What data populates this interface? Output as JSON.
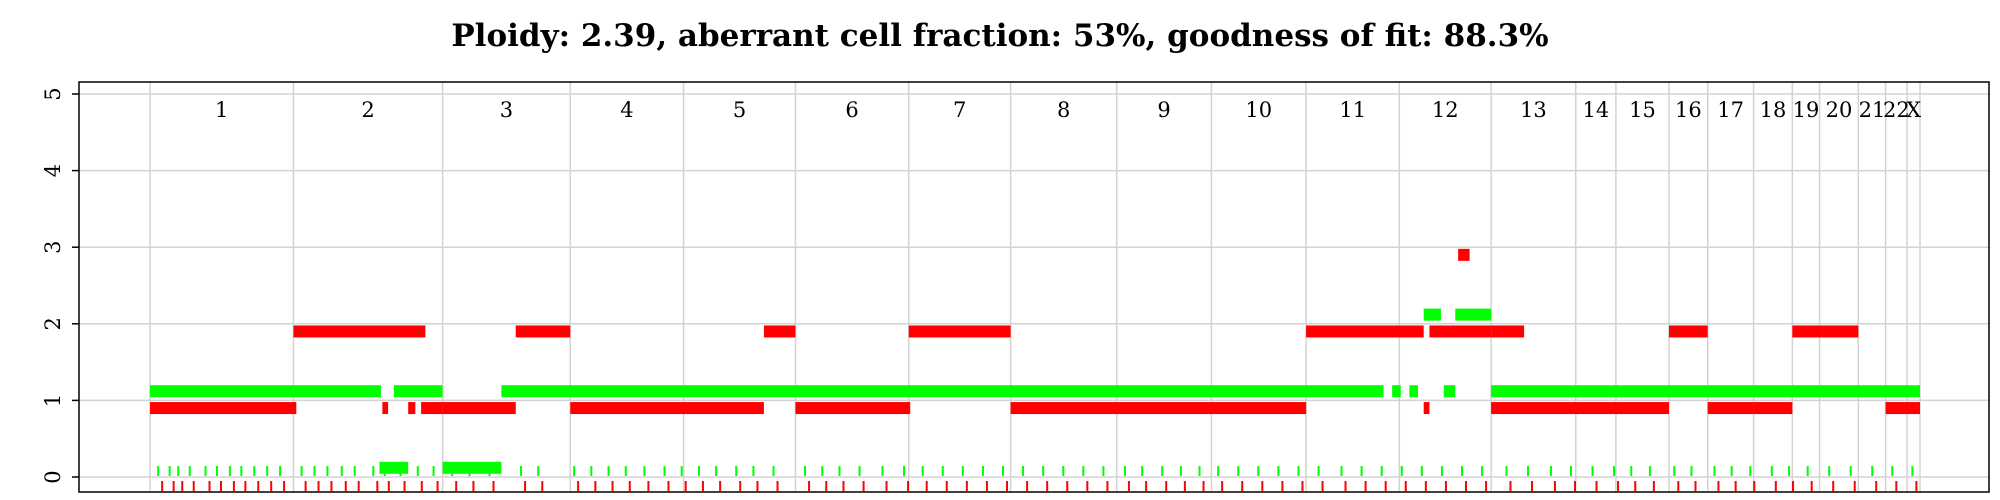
{
  "chart_data": {
    "type": "scatter",
    "title": "Ploidy: 2.39, aberrant cell fraction: 53%, goodness of fit: 88.3%",
    "xlabel": "",
    "ylabel": "",
    "ylim": [
      0,
      5
    ],
    "y_ticks": [
      "0",
      "1",
      "2",
      "3",
      "4",
      "5"
    ],
    "grid": true,
    "colors": {
      "major": "#00ff00",
      "minor": "#ff0000",
      "grid": "#d3d3d3",
      "frame": "#000000"
    },
    "chromosome_scale": [
      0,
      11.5
    ],
    "chromosomes": [
      {
        "label": "1",
        "start": 0.0,
        "end": 1.0
      },
      {
        "label": "2",
        "start": 1.0,
        "end": 2.04
      },
      {
        "label": "3",
        "start": 2.04,
        "end": 2.93
      },
      {
        "label": "4",
        "start": 2.93,
        "end": 3.72
      },
      {
        "label": "5",
        "start": 3.72,
        "end": 4.5
      },
      {
        "label": "6",
        "start": 4.5,
        "end": 5.29
      },
      {
        "label": "7",
        "start": 5.29,
        "end": 6.0
      },
      {
        "label": "8",
        "start": 6.0,
        "end": 6.74
      },
      {
        "label": "9",
        "start": 6.74,
        "end": 7.4
      },
      {
        "label": "10",
        "start": 7.4,
        "end": 8.06
      },
      {
        "label": "11",
        "start": 8.06,
        "end": 8.71
      },
      {
        "label": "12",
        "start": 8.71,
        "end": 9.35
      },
      {
        "label": "13",
        "start": 9.35,
        "end": 9.94
      },
      {
        "label": "14",
        "start": 9.94,
        "end": 10.22
      },
      {
        "label": "15",
        "start": 10.22,
        "end": 10.59
      },
      {
        "label": "16",
        "start": 10.59,
        "end": 10.86
      },
      {
        "label": "17",
        "start": 10.86,
        "end": 11.18
      },
      {
        "label": "18",
        "start": 11.18,
        "end": 11.45
      },
      {
        "label": "19",
        "start": 11.45,
        "end": 11.64
      },
      {
        "label": "20",
        "start": 11.64,
        "end": 11.91
      },
      {
        "label": "21",
        "start": 11.91,
        "end": 12.1
      },
      {
        "label": "22",
        "start": 12.1,
        "end": 12.25
      },
      {
        "label": "X",
        "start": 12.25,
        "end": 12.34
      }
    ],
    "series": [
      {
        "name": "",
        "color": "#00ff00",
        "y_offset": 0.12,
        "segments": [
          [
            0.0,
            1.0,
            1
          ],
          [
            1.0,
            1.61,
            1
          ],
          [
            1.7,
            2.04,
            1
          ],
          [
            2.04,
            2.45,
            0
          ],
          [
            2.45,
            8.6,
            1
          ],
          [
            8.66,
            8.72,
            1
          ],
          [
            8.78,
            8.84,
            1
          ],
          [
            8.88,
            9.0,
            2
          ],
          [
            9.02,
            9.1,
            1
          ],
          [
            9.1,
            9.35,
            2
          ],
          [
            9.35,
            12.34,
            1
          ],
          [
            1.6,
            1.8,
            0
          ]
        ]
      },
      {
        "name": "",
        "color": "#ff0000",
        "y_offset": -0.1,
        "segments": [
          [
            0.0,
            1.02,
            1
          ],
          [
            1.0,
            1.92,
            2
          ],
          [
            1.62,
            1.66,
            1
          ],
          [
            1.8,
            1.85,
            1
          ],
          [
            1.89,
            2.04,
            1
          ],
          [
            2.04,
            2.55,
            1
          ],
          [
            2.55,
            2.93,
            2
          ],
          [
            2.93,
            4.28,
            1
          ],
          [
            4.28,
            4.5,
            2
          ],
          [
            4.5,
            5.3,
            1
          ],
          [
            5.29,
            6.0,
            2
          ],
          [
            6.0,
            8.06,
            1
          ],
          [
            8.06,
            8.88,
            2
          ],
          [
            8.88,
            8.92,
            1
          ],
          [
            8.92,
            9.35,
            2
          ],
          [
            9.35,
            9.58,
            2
          ],
          [
            9.35,
            10.59,
            1
          ],
          [
            10.59,
            10.86,
            2
          ],
          [
            11.18,
            11.45,
            1
          ],
          [
            10.86,
            11.18,
            1
          ],
          [
            11.45,
            11.66,
            2
          ],
          [
            11.66,
            11.91,
            2
          ],
          [
            12.1,
            12.34,
            1
          ],
          [
            9.12,
            9.2,
            3
          ]
        ]
      }
    ]
  }
}
